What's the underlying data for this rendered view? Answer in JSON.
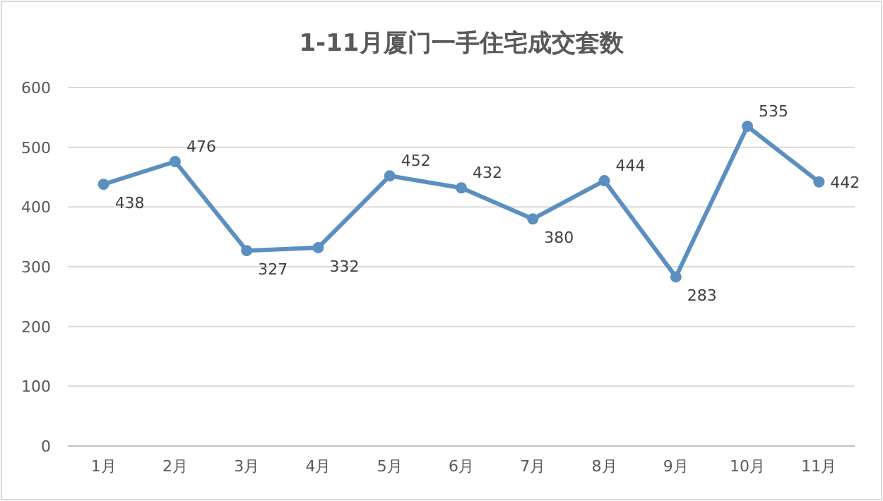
{
  "chart_data": {
    "type": "line",
    "title": "1-11月厦门一手住宅成交套数",
    "categories": [
      "1月",
      "2月",
      "3月",
      "4月",
      "5月",
      "6月",
      "7月",
      "8月",
      "9月",
      "10月",
      "11月"
    ],
    "values": [
      438,
      476,
      327,
      332,
      452,
      432,
      380,
      444,
      283,
      535,
      442
    ],
    "color": "#5b8fc0",
    "ylim": [
      0,
      600
    ],
    "yticks": [
      0,
      100,
      200,
      300,
      400,
      500,
      600
    ],
    "grid": "y",
    "marker": "circle",
    "data_labels": true
  }
}
